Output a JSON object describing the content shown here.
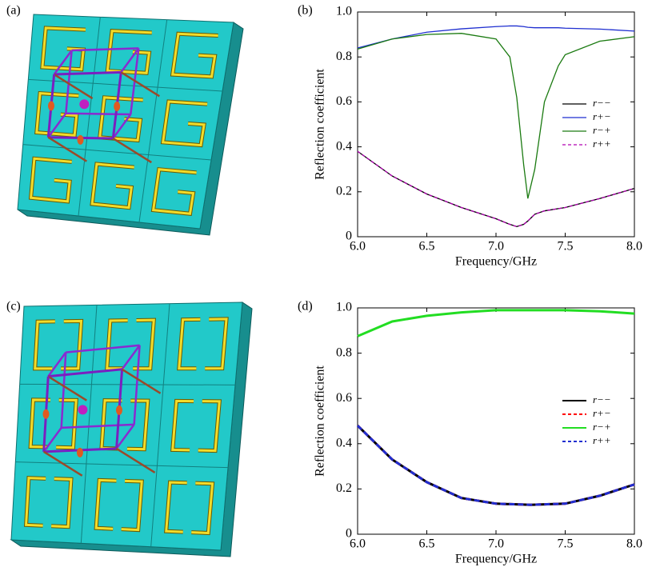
{
  "panel_labels": [
    "(a)",
    "(b)",
    "(c)",
    "(d)"
  ],
  "chart_data": [
    {
      "type": "line",
      "x_label": "Frequency/GHz",
      "y_label": "Reflection coefficient",
      "xlim": [
        6,
        8
      ],
      "ylim": [
        0,
        1
      ],
      "xticks": [
        {
          "value": 6,
          "label": "6.0"
        },
        6.5,
        {
          "value": 7,
          "label": "7.0"
        },
        7.5,
        {
          "value": 8,
          "label": "8.0"
        }
      ],
      "yticks": [
        0,
        0.2,
        0.4,
        0.6,
        0.8,
        {
          "value": 1,
          "label": "1.0"
        }
      ],
      "legend": "center right",
      "x": [
        6.0,
        6.25,
        6.5,
        6.75,
        7.0,
        7.1,
        7.15,
        7.2,
        7.23,
        7.28,
        7.35,
        7.45,
        7.5,
        7.75,
        8.0
      ],
      "series": [
        {
          "name": "r−−",
          "color": "#000000",
          "dash": false,
          "values": [
            0.38,
            0.27,
            0.19,
            0.13,
            0.08,
            0.055,
            0.045,
            0.055,
            0.07,
            0.1,
            0.115,
            0.125,
            0.13,
            0.17,
            0.215
          ]
        },
        {
          "name": "r+−",
          "color": "#1f2fd0",
          "dash": false,
          "values": [
            0.84,
            0.88,
            0.91,
            0.925,
            0.935,
            0.938,
            0.938,
            0.935,
            0.932,
            0.93,
            0.93,
            0.93,
            0.928,
            0.924,
            0.915
          ]
        },
        {
          "name": "r−+",
          "color": "#1a7a10",
          "dash": false,
          "values": [
            0.835,
            0.88,
            0.9,
            0.905,
            0.88,
            0.8,
            0.62,
            0.32,
            0.17,
            0.3,
            0.6,
            0.76,
            0.81,
            0.87,
            0.89
          ]
        },
        {
          "name": "r++",
          "color": "#b000b0",
          "dash": true,
          "values": [
            0.38,
            0.27,
            0.19,
            0.13,
            0.08,
            0.055,
            0.045,
            0.055,
            0.07,
            0.1,
            0.115,
            0.125,
            0.13,
            0.17,
            0.215
          ]
        }
      ]
    },
    {
      "type": "line",
      "x_label": "Frequency/GHz",
      "y_label": "Reflection coefficient",
      "xlim": [
        6,
        8
      ],
      "ylim": [
        0,
        1
      ],
      "xticks": [
        {
          "value": 6,
          "label": "6.0"
        },
        6.5,
        {
          "value": 7,
          "label": "7.0"
        },
        7.5,
        {
          "value": 8,
          "label": "8.0"
        }
      ],
      "yticks": [
        0,
        0.2,
        0.4,
        0.6,
        0.8,
        {
          "value": 1,
          "label": "1.0"
        }
      ],
      "legend": "center right",
      "x": [
        6.0,
        6.25,
        6.5,
        6.75,
        7.0,
        7.25,
        7.5,
        7.75,
        8.0
      ],
      "series": [
        {
          "name": "r−−",
          "color": "#000000",
          "dash": false,
          "values": [
            0.48,
            0.33,
            0.23,
            0.16,
            0.135,
            0.13,
            0.135,
            0.17,
            0.22
          ]
        },
        {
          "name": "r+−",
          "color": "#ff0000",
          "dash": true,
          "values": [
            0.48,
            0.33,
            0.23,
            0.16,
            0.135,
            0.13,
            0.135,
            0.17,
            0.22
          ]
        },
        {
          "name": "r−+",
          "color": "#22dd22",
          "dash": false,
          "values": [
            0.875,
            0.94,
            0.965,
            0.98,
            0.99,
            0.99,
            0.99,
            0.985,
            0.975
          ]
        },
        {
          "name": "r++",
          "color": "#1f2fd0",
          "dash": true,
          "values": [
            0.48,
            0.33,
            0.23,
            0.16,
            0.135,
            0.13,
            0.135,
            0.17,
            0.22
          ]
        }
      ]
    }
  ]
}
